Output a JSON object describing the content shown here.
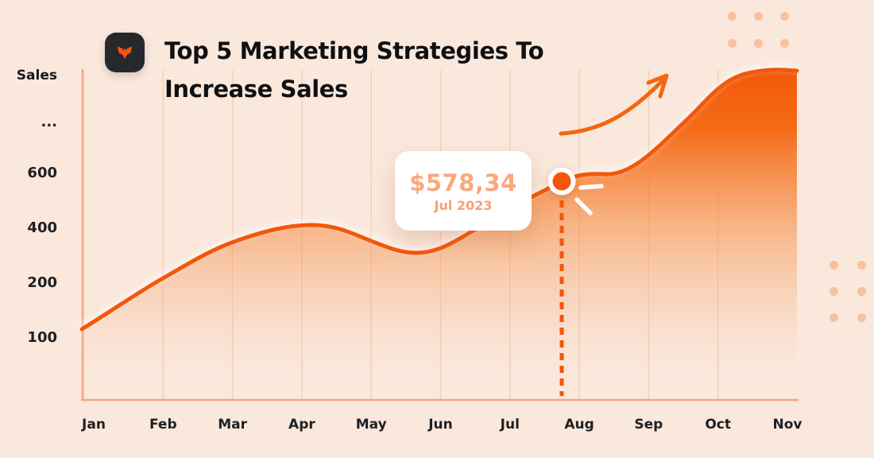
{
  "header": {
    "title_line1": "Top 5 Marketing Strategies To",
    "title_line2": "Increase Sales",
    "logo": "fox-brand-mark"
  },
  "y_axis": {
    "title": "Sales",
    "ticks": [
      "...",
      "600",
      "400",
      "200",
      "100"
    ]
  },
  "x_axis": {
    "months": [
      "Jan",
      "Feb",
      "Mar",
      "Apr",
      "May",
      "Jun",
      "Jul",
      "Aug",
      "Sep",
      "Oct",
      "Nov"
    ]
  },
  "tooltip": {
    "value": "$578,34",
    "date": "Jul 2023"
  },
  "colors": {
    "background": "#FAE8DD",
    "accent": "#F3570B",
    "area_top": "#F3580A",
    "tooltip_text": "#F9A87E",
    "grid_line": "#F6C9A5",
    "axis_line": "#F3A87D",
    "decor_dots": "#F8C19B",
    "logo_background": "#27282C",
    "marker_fill": "#F4560C",
    "text_dark": "#101013"
  },
  "chart_data": {
    "type": "area",
    "title": "Top 5 Marketing Strategies To Increase Sales",
    "ylabel": "Sales",
    "xlabel": "",
    "categories": [
      "Jan",
      "Feb",
      "Mar",
      "Apr",
      "May",
      "Jun",
      "Jul",
      "Aug",
      "Sep",
      "Oct",
      "Nov"
    ],
    "values": [
      125,
      220,
      345,
      410,
      350,
      340,
      578,
      590,
      640,
      900,
      970
    ],
    "y_ticks_shown": [
      "100",
      "200",
      "400",
      "600",
      "..."
    ],
    "highlight_point": {
      "month": "Jul 2023",
      "value": 578.34,
      "display": "$578,34"
    },
    "grid": true,
    "legend": "none",
    "layout_hints": "single orange series, gradient area fill fading to background, y-axis non-linear (100,200,400,600,...), highlighted point with dashed drop-line, white tooltip card, decorative growth arrow"
  }
}
